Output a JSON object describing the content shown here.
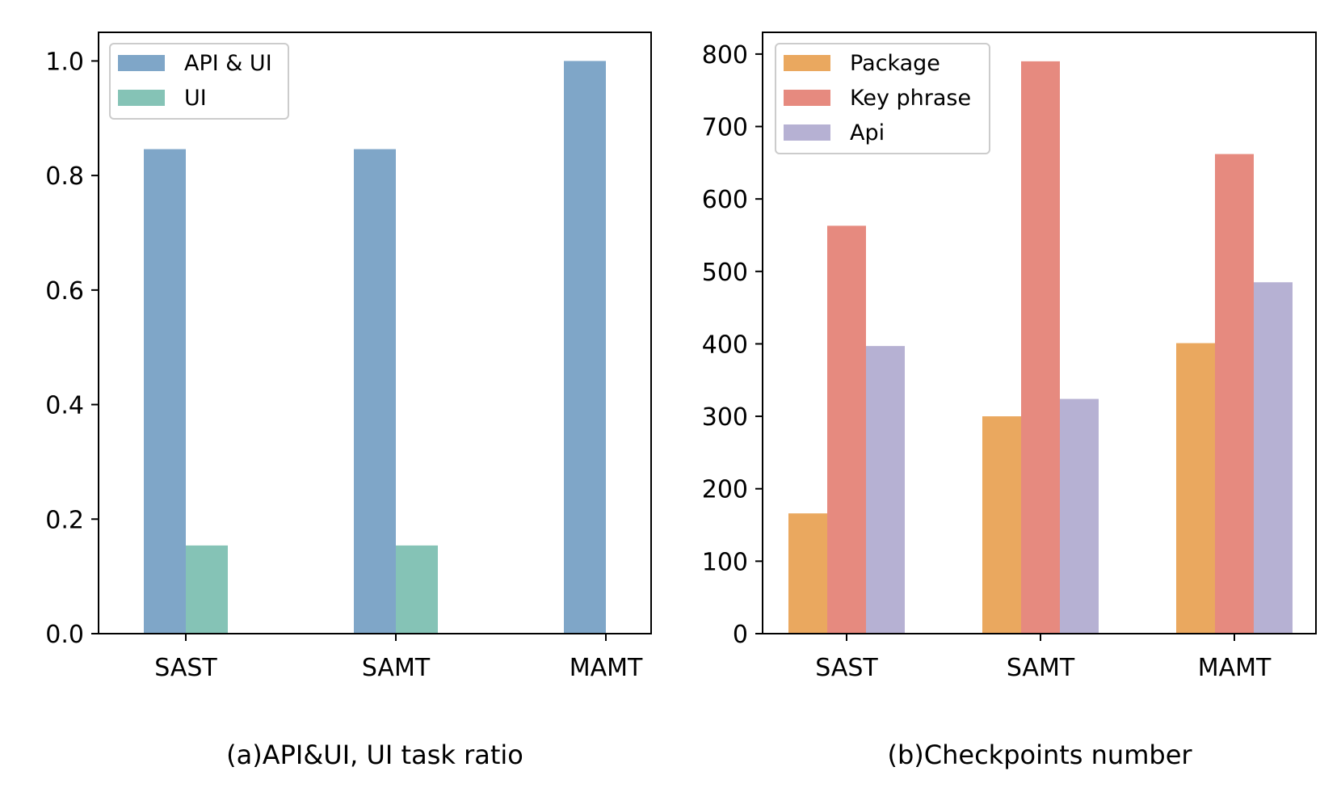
{
  "chart_data": [
    {
      "type": "bar",
      "caption": "(a)API&UI, UI task ratio",
      "categories": [
        "SAST",
        "SAMT",
        "MAMT"
      ],
      "series": [
        {
          "name": "API & UI",
          "values": [
            0.846,
            0.846,
            1.0
          ],
          "color": "#7fa6c8"
        },
        {
          "name": "UI",
          "values": [
            0.154,
            0.154,
            0.0
          ],
          "color": "#85c3b6"
        }
      ],
      "ylim": [
        0,
        1.05
      ],
      "yticks": [
        0.0,
        0.2,
        0.4,
        0.6,
        0.8,
        1.0
      ],
      "ytick_labels": [
        "0.0",
        "0.2",
        "0.4",
        "0.6",
        "0.8",
        "1.0"
      ],
      "legend_position": "top-left",
      "grid": false
    },
    {
      "type": "bar",
      "caption": "(b)Checkpoints number",
      "categories": [
        "SAST",
        "SAMT",
        "MAMT"
      ],
      "series": [
        {
          "name": "Package",
          "values": [
            166,
            300,
            401
          ],
          "color": "#eaa85f"
        },
        {
          "name": "Key phrase",
          "values": [
            563,
            790,
            662
          ],
          "color": "#e68a7f"
        },
        {
          "name": "Api",
          "values": [
            397,
            324,
            485
          ],
          "color": "#b6b1d3"
        }
      ],
      "ylim": [
        0,
        830
      ],
      "yticks": [
        0,
        100,
        200,
        300,
        400,
        500,
        600,
        700,
        800
      ],
      "ytick_labels": [
        "0",
        "100",
        "200",
        "300",
        "400",
        "500",
        "600",
        "700",
        "800"
      ],
      "legend_position": "top-left",
      "grid": false
    }
  ]
}
